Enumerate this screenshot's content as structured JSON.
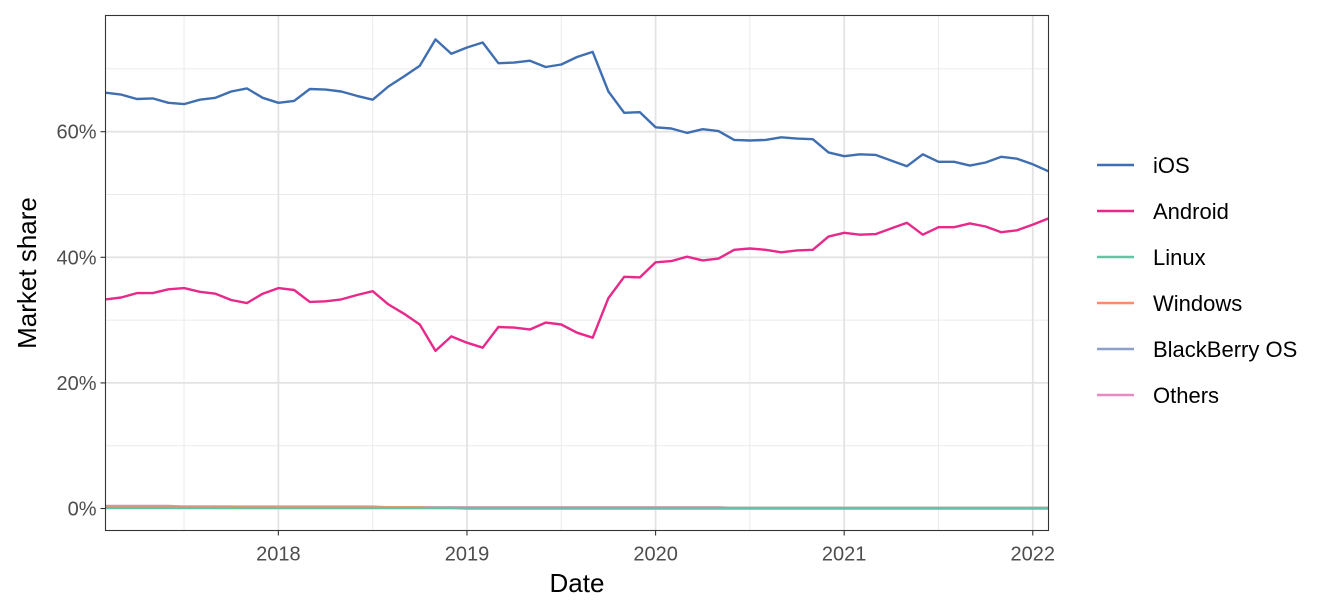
{
  "chart_data": {
    "type": "line",
    "title": "",
    "xlabel": "Date",
    "ylabel": "Market share",
    "x_axis": {
      "type": "date",
      "range": [
        "2017-02",
        "2022-02"
      ],
      "ticks": [
        "2018-01",
        "2019-01",
        "2020-01",
        "2021-01",
        "2022-01"
      ],
      "tick_labels": [
        "2018",
        "2019",
        "2020",
        "2021",
        "2022"
      ]
    },
    "y_axis": {
      "range": [
        -3.5,
        78.5
      ],
      "ticks": [
        0,
        20,
        40,
        60
      ],
      "tick_labels": [
        "0%",
        "20%",
        "40%",
        "60%"
      ],
      "minor_ticks": [
        10,
        30,
        50,
        70
      ]
    },
    "grid": true,
    "legend_position": "right",
    "x": [
      "2017-02",
      "2017-03",
      "2017-04",
      "2017-05",
      "2017-06",
      "2017-07",
      "2017-08",
      "2017-09",
      "2017-10",
      "2017-11",
      "2017-12",
      "2018-01",
      "2018-02",
      "2018-03",
      "2018-04",
      "2018-05",
      "2018-06",
      "2018-07",
      "2018-08",
      "2018-09",
      "2018-10",
      "2018-11",
      "2018-12",
      "2019-01",
      "2019-02",
      "2019-03",
      "2019-04",
      "2019-05",
      "2019-06",
      "2019-07",
      "2019-08",
      "2019-09",
      "2019-10",
      "2019-11",
      "2019-12",
      "2020-01",
      "2020-02",
      "2020-03",
      "2020-04",
      "2020-05",
      "2020-06",
      "2020-07",
      "2020-08",
      "2020-09",
      "2020-10",
      "2020-11",
      "2020-12",
      "2021-01",
      "2021-02",
      "2021-03",
      "2021-04",
      "2021-05",
      "2021-06",
      "2021-07",
      "2021-08",
      "2021-09",
      "2021-10",
      "2021-11",
      "2021-12",
      "2022-01",
      "2022-02"
    ],
    "series": [
      {
        "name": "iOS",
        "color": "#3f6fb0",
        "values": [
          66.2,
          65.9,
          65.2,
          65.3,
          64.6,
          64.4,
          65.1,
          65.4,
          66.4,
          66.9,
          65.4,
          64.6,
          64.9,
          66.8,
          66.7,
          66.4,
          65.7,
          65.1,
          67.2,
          68.8,
          70.5,
          74.7,
          72.4,
          73.4,
          74.2,
          70.9,
          71.0,
          71.3,
          70.3,
          70.7,
          71.9,
          72.7,
          66.4,
          63.0,
          63.1,
          60.7,
          60.5,
          59.8,
          60.4,
          60.1,
          58.7,
          58.6,
          58.7,
          59.1,
          58.9,
          58.8,
          56.7,
          56.1,
          56.4,
          56.3,
          55.4,
          54.5,
          56.4,
          55.2,
          55.2,
          54.6,
          55.1,
          56.0,
          55.7,
          54.8,
          53.7
        ]
      },
      {
        "name": "Android",
        "color": "#e7298a",
        "values": [
          33.3,
          33.6,
          34.3,
          34.3,
          34.9,
          35.1,
          34.5,
          34.2,
          33.2,
          32.7,
          34.2,
          35.1,
          34.8,
          32.9,
          33.0,
          33.3,
          34.0,
          34.6,
          32.5,
          31.0,
          29.3,
          25.1,
          27.4,
          26.4,
          25.6,
          28.9,
          28.8,
          28.5,
          29.6,
          29.3,
          28.0,
          27.2,
          33.5,
          36.9,
          36.8,
          39.2,
          39.4,
          40.1,
          39.5,
          39.8,
          41.2,
          41.4,
          41.2,
          40.8,
          41.1,
          41.2,
          43.3,
          43.9,
          43.6,
          43.7,
          44.6,
          45.5,
          43.6,
          44.8,
          44.8,
          45.4,
          44.9,
          44.0,
          44.3,
          45.2,
          46.2
        ]
      },
      {
        "name": "Linux",
        "color": "#66c2a5",
        "values": [
          0.1,
          0.1,
          0.1,
          0.1,
          0.1,
          0.1,
          0.1,
          0.1,
          0.1,
          0.1,
          0.1,
          0.1,
          0.1,
          0.1,
          0.1,
          0.1,
          0.1,
          0.1,
          0.1,
          0.1,
          0.1,
          0.1,
          0.1,
          0.1,
          0.1,
          0.1,
          0.1,
          0.1,
          0.1,
          0.1,
          0.1,
          0.1,
          0.1,
          0.1,
          0.1,
          0.1,
          0.1,
          0.1,
          0.1,
          0.1,
          0.1,
          0.1,
          0.1,
          0.1,
          0.1,
          0.1,
          0.1,
          0.1,
          0.1,
          0.1,
          0.1,
          0.1,
          0.1,
          0.1,
          0.1,
          0.1,
          0.1,
          0.1,
          0.1,
          0.1,
          0.1
        ]
      },
      {
        "name": "Windows",
        "color": "#fc8d62",
        "values": [
          0.3,
          0.3,
          0.3,
          0.3,
          0.3,
          0.3,
          0.3,
          0.3,
          0.3,
          0.2,
          0.2,
          0.2,
          0.2,
          0.2,
          0.2,
          0.2,
          0.2,
          0.2,
          0.2,
          0.2,
          0.2,
          0.1,
          0.1,
          0.1,
          0.1,
          0.1,
          0.1,
          0.1,
          0.1,
          0.1,
          0.1,
          0.1,
          0.1,
          0.1,
          0.1,
          0.1,
          0.1,
          0.1,
          0.1,
          0.1,
          0.1,
          0.1,
          0.1,
          0.1,
          0.1,
          0.1,
          0.1,
          0.1,
          0.1,
          0.1,
          0.1,
          0.1,
          0.1,
          0.1,
          0.1,
          0.1,
          0.1,
          0.1,
          0.1,
          0.1,
          0.1
        ]
      },
      {
        "name": "BlackBerry OS",
        "color": "#8da0cb",
        "values": [
          0.2,
          0.2,
          0.2,
          0.2,
          0.2,
          0.2,
          0.2,
          0.1,
          0.1,
          0.1,
          0.1,
          0.1,
          0.1,
          0.1,
          0.1,
          0.1,
          0.1,
          0.1,
          0.1,
          0.1,
          0.1,
          0.1,
          0.1,
          0.0,
          0.0,
          0.0,
          0.0,
          0.0,
          0.0,
          0.0,
          0.0,
          0.0,
          0.0,
          0.0,
          0.0,
          0.0,
          0.0,
          0.0,
          0.0,
          0.0,
          0.0,
          0.0,
          0.0,
          0.0,
          0.0,
          0.0,
          0.0,
          0.0,
          0.0,
          0.0,
          0.0,
          0.0,
          0.0,
          0.0,
          0.0,
          0.0,
          0.0,
          0.0,
          0.0,
          0.0,
          0.0
        ]
      },
      {
        "name": "Others",
        "color": "#e78ac3",
        "values": [
          0.4,
          0.4,
          0.4,
          0.4,
          0.4,
          0.3,
          0.3,
          0.3,
          0.3,
          0.3,
          0.3,
          0.3,
          0.3,
          0.3,
          0.3,
          0.3,
          0.3,
          0.3,
          0.2,
          0.2,
          0.2,
          0.2,
          0.2,
          0.2,
          0.2,
          0.2,
          0.2,
          0.2,
          0.2,
          0.2,
          0.2,
          0.2,
          0.2,
          0.2,
          0.2,
          0.2,
          0.2,
          0.2,
          0.2,
          0.2,
          0.1,
          0.1,
          0.1,
          0.1,
          0.1,
          0.1,
          0.1,
          0.1,
          0.1,
          0.1,
          0.1,
          0.1,
          0.1,
          0.1,
          0.1,
          0.1,
          0.1,
          0.1,
          0.1,
          0.1,
          0.1
        ]
      }
    ]
  }
}
